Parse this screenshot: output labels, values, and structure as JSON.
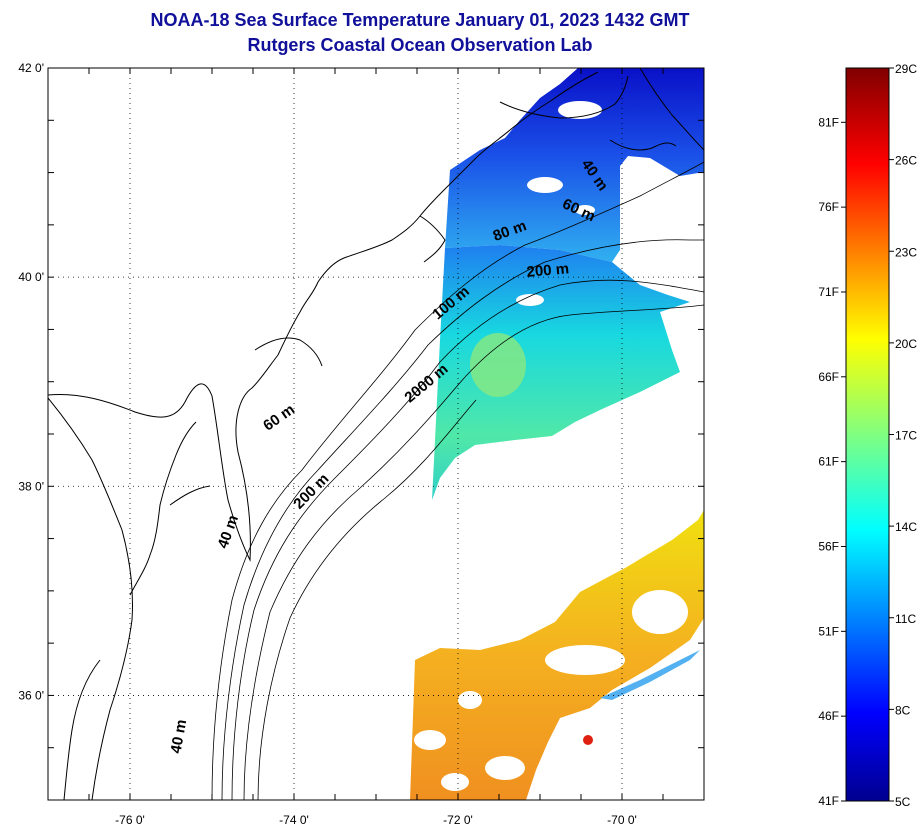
{
  "title": {
    "line1": "NOAA-18 Sea Surface Temperature January 01, 2023 1432 GMT",
    "line2": "Rutgers Coastal Ocean Observation Lab"
  },
  "map": {
    "lon_range": [
      -77,
      -69
    ],
    "lat_range": [
      35,
      42
    ],
    "lat_ticks": [
      {
        "value": 42,
        "label": "42 0'"
      },
      {
        "value": 40,
        "label": "40 0'"
      },
      {
        "value": 38,
        "label": "38 0'"
      },
      {
        "value": 36,
        "label": "36 0'"
      }
    ],
    "lon_ticks": [
      {
        "value": -76,
        "label": "-76 0'"
      },
      {
        "value": -74,
        "label": "-74 0'"
      },
      {
        "value": -72,
        "label": "-72 0'"
      },
      {
        "value": -70,
        "label": "-70 0'"
      }
    ],
    "grid": "dotted",
    "isobath_labels": [
      {
        "text": "40 m",
        "lon": -70.38,
        "lat": 40.95,
        "rotate": 55
      },
      {
        "text": "60 m",
        "lon": -70.55,
        "lat": 40.6,
        "rotate": 25
      },
      {
        "text": "80 m",
        "lon": -71.35,
        "lat": 40.4,
        "rotate": -20
      },
      {
        "text": "200 m",
        "lon": -70.9,
        "lat": 40.02,
        "rotate": -5
      },
      {
        "text": "100 m",
        "lon": -72.05,
        "lat": 39.72,
        "rotate": -40
      },
      {
        "text": "2000 m",
        "lon": -72.35,
        "lat": 38.95,
        "rotate": -40
      },
      {
        "text": "60 m",
        "lon": -74.15,
        "lat": 38.62,
        "rotate": -35
      },
      {
        "text": "200 m",
        "lon": -73.75,
        "lat": 37.92,
        "rotate": -45
      },
      {
        "text": "40 m",
        "lon": -74.75,
        "lat": 37.55,
        "rotate": -70
      },
      {
        "text": "40 m",
        "lon": -75.35,
        "lat": 35.6,
        "rotate": -80
      }
    ]
  },
  "colorbar": {
    "scale": "jet",
    "celsius_labels": [
      "29C",
      "26C",
      "23C",
      "20C",
      "17C",
      "14C",
      "11C",
      "8C",
      "5C"
    ],
    "fahrenheit_labels": [
      "81F",
      "76F",
      "71F",
      "66F",
      "61F",
      "56F",
      "51F",
      "46F",
      "41F"
    ],
    "celsius_range": [
      5,
      29
    ],
    "fahrenheit_range": [
      41,
      84.2
    ]
  },
  "colors": {
    "title": "#10109a",
    "cold": "#0000a0",
    "warm": "#ffa000"
  }
}
